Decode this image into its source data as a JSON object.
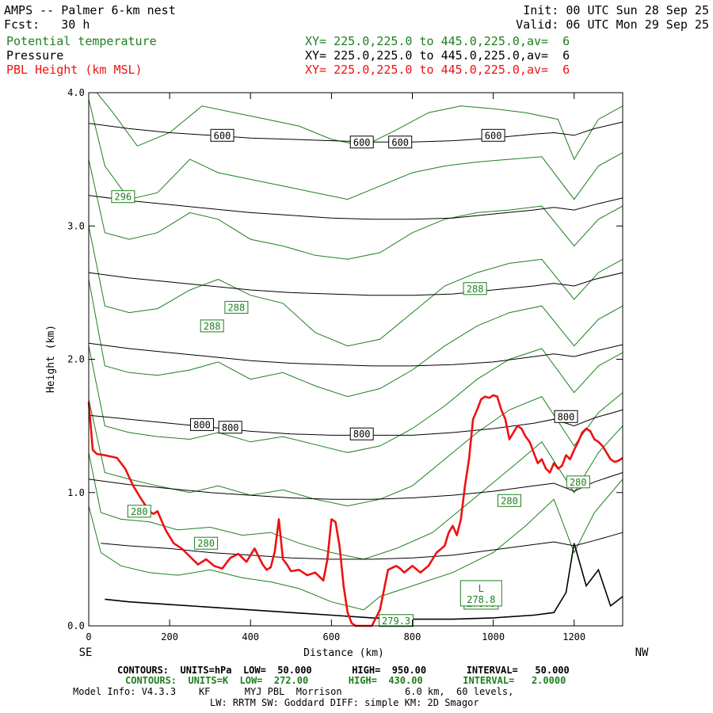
{
  "header": {
    "title": "AMPS -- Palmer 6-km nest",
    "forecast": "Fcst:   30 h",
    "init": "Init: 00 UTC Sun 28 Sep 25",
    "valid": "Valid: 06 UTC Mon 29 Sep 25",
    "legend": [
      {
        "name": "Potential temperature",
        "xy": "XY= 225.0,225.0 to 445.0,225.0,av=  6",
        "color": "#1e7f1e"
      },
      {
        "name": "Pressure",
        "xy": "XY= 225.0,225.0 to 445.0,225.0,av=  6",
        "color": "#000000"
      },
      {
        "name": "PBL Height (km MSL)",
        "xy": "XY= 225.0,225.0 to 445.0,225.0,av=  6",
        "color": "#ee1111"
      }
    ]
  },
  "chart_data": {
    "type": "line",
    "title": "AMPS -- Palmer 6-km nest cross section",
    "xlabel": "Distance (km)",
    "ylabel": "Height (km)",
    "xlim": [
      0,
      1320
    ],
    "ylim": [
      0,
      4.0
    ],
    "x_ticks": [
      0,
      200,
      400,
      600,
      800,
      1000,
      1200
    ],
    "x_tick_labels": [
      "0",
      "200",
      "400",
      "600",
      "800",
      "1000",
      "1200"
    ],
    "y_ticks": [
      0,
      1,
      2,
      3,
      4
    ],
    "y_tick_labels": [
      "0.0",
      "1.0",
      "2.0",
      "3.0",
      "4.0"
    ],
    "left_end_label": "SE",
    "right_end_label": "NW",
    "pressure_contours": [
      {
        "level": 600,
        "x": [
          0,
          100,
          200,
          300,
          400,
          500,
          600,
          700,
          800,
          900,
          1000,
          1100,
          1150,
          1200,
          1250,
          1320
        ],
        "y": [
          3.77,
          3.73,
          3.7,
          3.68,
          3.66,
          3.65,
          3.64,
          3.63,
          3.63,
          3.64,
          3.66,
          3.69,
          3.7,
          3.68,
          3.73,
          3.78
        ]
      },
      {
        "level": 650,
        "x": [
          0,
          100,
          200,
          300,
          400,
          500,
          600,
          700,
          800,
          900,
          1000,
          1100,
          1150,
          1200,
          1250,
          1320
        ],
        "y": [
          3.23,
          3.19,
          3.16,
          3.13,
          3.1,
          3.08,
          3.06,
          3.05,
          3.05,
          3.06,
          3.09,
          3.12,
          3.14,
          3.12,
          3.16,
          3.21
        ]
      },
      {
        "level": 700,
        "x": [
          0,
          100,
          200,
          300,
          400,
          500,
          600,
          700,
          800,
          900,
          1000,
          1100,
          1150,
          1200,
          1250,
          1320
        ],
        "y": [
          2.65,
          2.61,
          2.58,
          2.55,
          2.52,
          2.5,
          2.49,
          2.48,
          2.48,
          2.49,
          2.52,
          2.55,
          2.57,
          2.55,
          2.6,
          2.65
        ]
      },
      {
        "level": 750,
        "x": [
          0,
          100,
          200,
          300,
          400,
          500,
          600,
          700,
          800,
          900,
          1000,
          1100,
          1150,
          1200,
          1250,
          1320
        ],
        "y": [
          2.12,
          2.08,
          2.05,
          2.02,
          1.99,
          1.97,
          1.96,
          1.95,
          1.95,
          1.96,
          1.98,
          2.02,
          2.04,
          2.02,
          2.06,
          2.11
        ]
      },
      {
        "level": 800,
        "x": [
          0,
          100,
          200,
          300,
          400,
          500,
          600,
          700,
          800,
          900,
          1000,
          1100,
          1150,
          1200,
          1250,
          1320
        ],
        "y": [
          1.58,
          1.55,
          1.52,
          1.49,
          1.46,
          1.44,
          1.43,
          1.43,
          1.43,
          1.45,
          1.48,
          1.52,
          1.55,
          1.5,
          1.56,
          1.62
        ]
      },
      {
        "level": 850,
        "x": [
          0,
          100,
          200,
          300,
          400,
          500,
          600,
          700,
          800,
          900,
          1000,
          1100,
          1150,
          1200,
          1250,
          1320
        ],
        "y": [
          1.1,
          1.06,
          1.03,
          1.0,
          0.98,
          0.96,
          0.95,
          0.95,
          0.96,
          0.98,
          1.01,
          1.05,
          1.07,
          1.01,
          1.08,
          1.15
        ]
      },
      {
        "level": 900,
        "x": [
          30,
          100,
          200,
          300,
          400,
          500,
          600,
          700,
          800,
          900,
          1000,
          1100,
          1150,
          1200,
          1250,
          1320
        ],
        "y": [
          0.62,
          0.6,
          0.58,
          0.55,
          0.53,
          0.51,
          0.5,
          0.5,
          0.51,
          0.53,
          0.57,
          0.61,
          0.63,
          0.6,
          0.64,
          0.7
        ]
      },
      {
        "level": 950,
        "x": [
          40,
          100,
          200,
          300,
          400,
          500,
          600,
          700,
          800,
          900,
          1000,
          1100,
          1150,
          1180,
          1200,
          1230,
          1260,
          1290,
          1320
        ],
        "y": [
          0.2,
          0.18,
          0.16,
          0.14,
          0.12,
          0.1,
          0.08,
          0.06,
          0.05,
          0.05,
          0.06,
          0.08,
          0.1,
          0.25,
          0.62,
          0.3,
          0.42,
          0.15,
          0.22
        ]
      }
    ],
    "theta_contours": [
      {
        "x": [
          0,
          30,
          80,
          150,
          220,
          300,
          380,
          450,
          520,
          600,
          680,
          720,
          800,
          900,
          1000,
          1080,
          1150,
          1200,
          1250,
          1320
        ],
        "y": [
          0.9,
          0.55,
          0.45,
          0.4,
          0.38,
          0.42,
          0.36,
          0.33,
          0.28,
          0.18,
          0.12,
          0.22,
          0.3,
          0.4,
          0.55,
          0.75,
          0.95,
          0.55,
          0.85,
          1.1
        ]
      },
      {
        "x": [
          0,
          30,
          80,
          150,
          220,
          300,
          380,
          450,
          520,
          600,
          680,
          760,
          850,
          950,
          1050,
          1120,
          1200,
          1260,
          1320
        ],
        "y": [
          1.3,
          0.85,
          0.8,
          0.78,
          0.72,
          0.74,
          0.68,
          0.7,
          0.62,
          0.55,
          0.5,
          0.58,
          0.7,
          0.95,
          1.2,
          1.38,
          1.0,
          1.3,
          1.5
        ]
      },
      {
        "x": [
          0,
          40,
          100,
          170,
          250,
          320,
          400,
          480,
          560,
          640,
          720,
          800,
          880,
          960,
          1040,
          1120,
          1200,
          1260,
          1320
        ],
        "y": [
          1.7,
          1.15,
          1.1,
          1.05,
          1.0,
          1.05,
          0.98,
          1.02,
          0.95,
          0.9,
          0.95,
          1.05,
          1.25,
          1.45,
          1.62,
          1.72,
          1.35,
          1.6,
          1.75
        ]
      },
      {
        "x": [
          0,
          40,
          100,
          170,
          250,
          320,
          400,
          480,
          560,
          640,
          720,
          800,
          880,
          960,
          1040,
          1120,
          1200,
          1260,
          1320
        ],
        "y": [
          2.1,
          1.5,
          1.45,
          1.42,
          1.4,
          1.45,
          1.38,
          1.42,
          1.36,
          1.3,
          1.35,
          1.48,
          1.65,
          1.85,
          2.0,
          2.08,
          1.75,
          1.95,
          2.05
        ]
      },
      {
        "x": [
          0,
          40,
          100,
          170,
          250,
          320,
          400,
          480,
          560,
          640,
          720,
          800,
          880,
          960,
          1040,
          1120,
          1200,
          1260,
          1320
        ],
        "y": [
          2.6,
          1.95,
          1.9,
          1.88,
          1.92,
          1.98,
          1.85,
          1.9,
          1.8,
          1.72,
          1.78,
          1.92,
          2.1,
          2.25,
          2.35,
          2.4,
          2.1,
          2.3,
          2.4
        ]
      },
      {
        "x": [
          0,
          40,
          100,
          170,
          250,
          320,
          400,
          480,
          560,
          640,
          720,
          800,
          880,
          960,
          1040,
          1120,
          1200,
          1260,
          1320
        ],
        "y": [
          3.0,
          2.4,
          2.35,
          2.38,
          2.52,
          2.6,
          2.48,
          2.42,
          2.2,
          2.1,
          2.15,
          2.35,
          2.55,
          2.65,
          2.72,
          2.75,
          2.45,
          2.65,
          2.75
        ]
      },
      {
        "x": [
          0,
          40,
          100,
          170,
          250,
          320,
          400,
          480,
          560,
          640,
          720,
          800,
          880,
          960,
          1040,
          1120,
          1200,
          1260,
          1320
        ],
        "y": [
          3.5,
          2.95,
          2.9,
          2.95,
          3.1,
          3.05,
          2.9,
          2.85,
          2.78,
          2.75,
          2.8,
          2.95,
          3.05,
          3.1,
          3.12,
          3.15,
          2.85,
          3.05,
          3.15
        ]
      },
      {
        "x": [
          0,
          40,
          100,
          170,
          250,
          320,
          400,
          480,
          560,
          640,
          720,
          800,
          880,
          960,
          1040,
          1120,
          1200,
          1260,
          1320
        ],
        "y": [
          3.95,
          3.45,
          3.2,
          3.25,
          3.5,
          3.4,
          3.35,
          3.3,
          3.25,
          3.2,
          3.3,
          3.4,
          3.45,
          3.48,
          3.5,
          3.52,
          3.2,
          3.45,
          3.55
        ]
      },
      {
        "x": [
          20,
          60,
          120,
          200,
          280,
          360,
          440,
          520,
          600,
          680,
          760,
          840,
          920,
          1000,
          1080,
          1160,
          1200,
          1260,
          1320
        ],
        "y": [
          4.0,
          3.85,
          3.6,
          3.7,
          3.9,
          3.85,
          3.8,
          3.75,
          3.65,
          3.6,
          3.72,
          3.85,
          3.9,
          3.88,
          3.85,
          3.8,
          3.5,
          3.8,
          3.9
        ]
      }
    ],
    "theta_labels": [
      {
        "text": "296",
        "x": 85,
        "y": 3.22
      },
      {
        "text": "288",
        "x": 365,
        "y": 2.39
      },
      {
        "text": "288",
        "x": 305,
        "y": 2.25
      },
      {
        "text": "288",
        "x": 955,
        "y": 2.53
      },
      {
        "text": "280",
        "x": 125,
        "y": 0.86
      },
      {
        "text": "280",
        "x": 290,
        "y": 0.62
      },
      {
        "text": "280",
        "x": 1040,
        "y": 0.94
      },
      {
        "text": "280",
        "x": 1210,
        "y": 1.08
      },
      {
        "text": "278.8",
        "x": 970,
        "y": 0.17
      },
      {
        "text": "279.3",
        "x": 760,
        "y": 0.04
      }
    ],
    "pressure_labels": [
      {
        "text": "600",
        "x": 330,
        "y": 3.68
      },
      {
        "text": "600",
        "x": 675,
        "y": 3.63
      },
      {
        "text": "600",
        "x": 770,
        "y": 3.63
      },
      {
        "text": "600",
        "x": 1000,
        "y": 3.68
      },
      {
        "text": "800",
        "x": 280,
        "y": 1.51
      },
      {
        "text": "800",
        "x": 350,
        "y": 1.49
      },
      {
        "text": "800",
        "x": 675,
        "y": 1.44
      },
      {
        "text": "800",
        "x": 1180,
        "y": 1.57
      }
    ],
    "low_marker": {
      "text": "L",
      "value": "278.8",
      "x": 970,
      "y": 0.28
    },
    "pbl_height": {
      "x": [
        0,
        10,
        20,
        40,
        70,
        90,
        110,
        130,
        150,
        160,
        170,
        190,
        210,
        230,
        250,
        270,
        290,
        310,
        330,
        350,
        370,
        390,
        410,
        420,
        430,
        440,
        450,
        460,
        470,
        480,
        490,
        500,
        520,
        540,
        560,
        580,
        590,
        600,
        610,
        620,
        630,
        640,
        650,
        660,
        670,
        680,
        690,
        700,
        720,
        740,
        760,
        770,
        780,
        800,
        820,
        840,
        860,
        880,
        890,
        900,
        910,
        920,
        930,
        940,
        950,
        960,
        970,
        980,
        990,
        1000,
        1010,
        1020,
        1030,
        1040,
        1050,
        1060,
        1070,
        1080,
        1090,
        1100,
        1110,
        1120,
        1130,
        1140,
        1150,
        1160,
        1170,
        1180,
        1190,
        1200,
        1210,
        1220,
        1230,
        1240,
        1250,
        1260,
        1270,
        1280,
        1290,
        1300,
        1310,
        1320
      ],
      "y": [
        1.68,
        1.32,
        1.29,
        1.28,
        1.26,
        1.18,
        1.05,
        0.95,
        0.86,
        0.84,
        0.86,
        0.72,
        0.62,
        0.58,
        0.52,
        0.46,
        0.5,
        0.45,
        0.43,
        0.51,
        0.54,
        0.48,
        0.58,
        0.52,
        0.46,
        0.42,
        0.44,
        0.56,
        0.8,
        0.5,
        0.46,
        0.41,
        0.42,
        0.38,
        0.4,
        0.34,
        0.5,
        0.8,
        0.78,
        0.6,
        0.3,
        0.1,
        0.02,
        0.0,
        0.0,
        0.0,
        0.0,
        0.0,
        0.12,
        0.42,
        0.45,
        0.43,
        0.4,
        0.45,
        0.4,
        0.45,
        0.55,
        0.6,
        0.7,
        0.75,
        0.68,
        0.8,
        1.05,
        1.25,
        1.55,
        1.62,
        1.7,
        1.72,
        1.71,
        1.73,
        1.72,
        1.62,
        1.55,
        1.4,
        1.45,
        1.5,
        1.48,
        1.42,
        1.38,
        1.3,
        1.22,
        1.25,
        1.18,
        1.15,
        1.22,
        1.18,
        1.2,
        1.28,
        1.25,
        1.32,
        1.38,
        1.45,
        1.48,
        1.46,
        1.4,
        1.38,
        1.35,
        1.3,
        1.25,
        1.23,
        1.24,
        1.26
      ]
    }
  },
  "footer": {
    "black_contours": "CONTOURS:  UNITS=hPa  LOW=  50.000       HIGH=  950.00       INTERVAL=   50.000",
    "green_contours": "CONTOURS:  UNITS=K  LOW=  272.00       HIGH=  430.00       INTERVAL=   2.0000",
    "model_info": "Model Info: V4.3.3    KF      MYJ PBL  Morrison           6.0 km,  60 levels,",
    "model_info2": "LW: RRTM SW: Goddard DIFF: simple KM: 2D Smagor"
  }
}
